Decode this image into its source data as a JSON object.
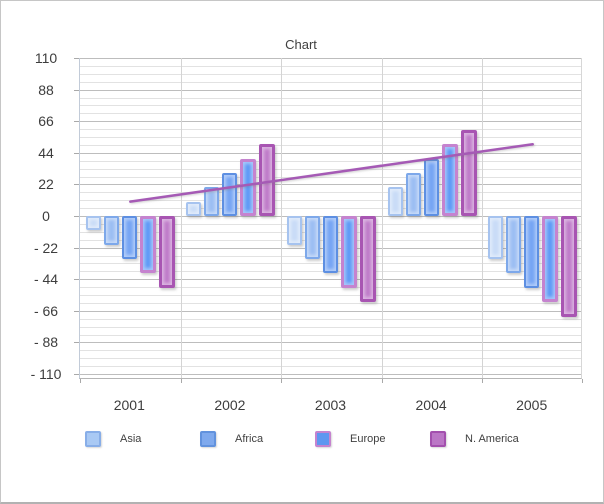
{
  "window": {
    "background": "#ffffff",
    "border_color": "#c6c6c6"
  },
  "chart_data": {
    "type": "bar",
    "title": "Chart",
    "categories": [
      "2001",
      "2002",
      "2003",
      "2004",
      "2005"
    ],
    "series": [
      {
        "name": "Asia",
        "type": "bar",
        "values": [
          -10,
          10,
          -20,
          20,
          -30
        ],
        "fill": "#c9dcf7",
        "border": "#a6c3ef"
      },
      {
        "name": "Africa",
        "type": "bar",
        "values": [
          -20,
          20,
          -30,
          30,
          -40
        ],
        "fill": "#9cbef3",
        "border": "#7da8ea"
      },
      {
        "name": "",
        "type": "bar",
        "values": [
          -30,
          30,
          -40,
          40,
          -50
        ],
        "fill": "#76a5f4",
        "border": "#5d8fe2"
      },
      {
        "name": "Europe",
        "type": "bar",
        "values": [
          -40,
          40,
          -50,
          50,
          -60
        ],
        "fill": "#5e99f6",
        "border": "#c583cf"
      },
      {
        "name": "N. America",
        "type": "bar",
        "values": [
          -50,
          50,
          -60,
          60,
          -70
        ],
        "fill": "#bf7bc9",
        "border": "#a855b2"
      }
    ],
    "trend_line": {
      "color": "#a55ab5",
      "x": [
        "2001",
        "2002",
        "2003",
        "2004",
        "2005"
      ],
      "values": [
        10,
        20,
        30,
        40,
        50
      ]
    },
    "y_axis": {
      "min": -110,
      "max": 110,
      "major_step": 22,
      "minor_step": 5.5,
      "tick_labels": [
        "110",
        "88",
        "66",
        "44",
        "22",
        "0",
        "- 22",
        "- 44",
        "- 66",
        "- 88",
        "- 110"
      ]
    },
    "grid": true,
    "legend_position": "bottom",
    "legend": [
      {
        "label": "Asia",
        "fill": "#a9c9f4",
        "border": "#88aee8"
      },
      {
        "label": "Africa",
        "fill": "#7fa9ed",
        "border": "#6292dd"
      },
      {
        "label": "Europe",
        "fill": "#5e97f0",
        "border": "#c583cf"
      },
      {
        "label": "N. America",
        "fill": "#bb77c6",
        "border": "#a350ae"
      }
    ]
  }
}
